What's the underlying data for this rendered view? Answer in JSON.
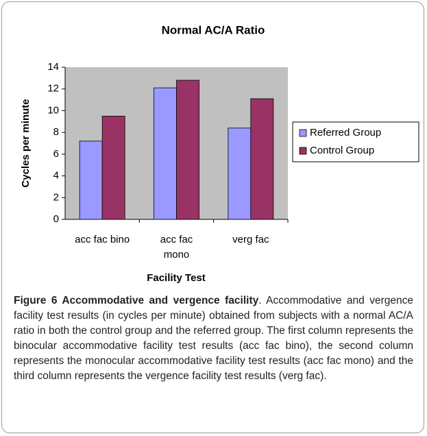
{
  "chart_data": {
    "type": "bar",
    "title": "Normal AC/A Ratio",
    "categories": [
      "acc fac bino",
      "acc fac mono",
      "verg fac"
    ],
    "series": [
      {
        "name": "Referred Group",
        "color": "#9999ff",
        "values": [
          7.2,
          12.1,
          8.4
        ]
      },
      {
        "name": "Control Group",
        "color": "#993366",
        "values": [
          9.5,
          12.8,
          11.1
        ]
      }
    ],
    "ylim": [
      0,
      14
    ],
    "yticks": [
      0,
      2,
      4,
      6,
      8,
      10,
      12,
      14
    ],
    "grid": false,
    "xlabel": "Facility Test",
    "ylabel": "Cycles per minute",
    "legend": "right"
  },
  "caption": {
    "title": "Figure 6 Accommodative and vergence facility",
    "text": ". Accommodative and vergence facility test results (in cycles per minute) obtained from subjects with a normal AC/A ratio in both the control group and the referred group. The first column represents the binocular accommodative facility test results (acc fac bino), the second column represents the monocular accommodative facility test results (acc fac mono) and the third column represents the vergence facility test results (verg fac)."
  }
}
